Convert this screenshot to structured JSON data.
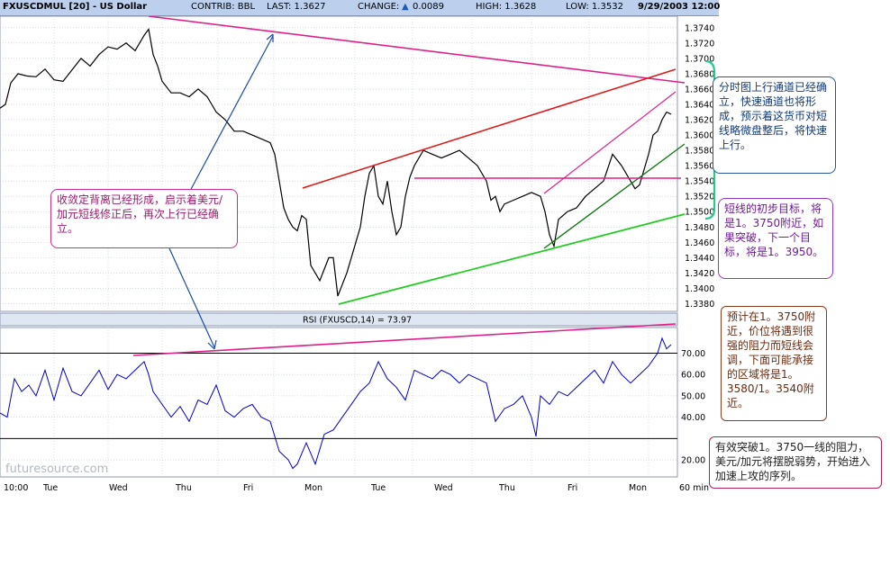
{
  "header": {
    "symbol": "FXUSCDMUL [20] - US Dollar",
    "contrib": "CONTRIB: BBL",
    "last": "LAST: 1.3627",
    "change_label": "CHANGE:",
    "change_arrow": "▲",
    "change_value": "0.0089",
    "high": "HIGH: 1.3628",
    "low": "LOW: 1.3532",
    "datetime": "9/29/2003 12:00"
  },
  "rsi_label": "RSI (FXUSCD,14) = 73.97",
  "watermark": "futuresource.com",
  "x_axis": {
    "labels": [
      "10:00",
      "Tue",
      "Wed",
      "Thu",
      "Fri",
      "Mon",
      "Tue",
      "Wed",
      "Thu",
      "Fri",
      "Mon",
      "60 min"
    ]
  },
  "annotations": {
    "divergence": "收敛定背离已经形成，启示着美元/加元短线修正后，再次上行已经确立。",
    "channel": "分时图上行通道已经确立，快速通道也将形成，预示着这货币对短线略微盘整后，将快速上行。",
    "target": "短线的初步目标，将是1。3750附近，如果突破，下一个目标，将是1。3950。",
    "resistance": "预计在1。3750附近，价位将遇到很强的阻力而短线会调，下面可能承接的区域将是1。3580/1。3540附近。",
    "breakout": "有效突破1。3750一线的阻力，美元/加元将摆脱弱势，开始进入加速上攻的序列。"
  },
  "colors": {
    "price_line": "#000000",
    "rsi_line": "#0000cc",
    "magenta_line": "#e0208a",
    "red_line": "#dd1a1a",
    "green_line": "#22cc22",
    "dark_green_line": "#117711",
    "blue_arrow": "#1a4aa6",
    "cyan_bracket": "#22cc88",
    "grid": "#c0c8d4",
    "header_bg": "#bcd0ee"
  },
  "chart_data": [
    {
      "type": "line",
      "title": "FXUSCDMUL [20] - US Dollar",
      "interval": "60 min",
      "y_ticks": [
        1.338,
        1.34,
        1.342,
        1.344,
        1.346,
        1.348,
        1.35,
        1.352,
        1.354,
        1.356,
        1.358,
        1.36,
        1.362,
        1.364,
        1.366,
        1.368,
        1.37,
        1.372,
        1.374
      ],
      "y_tick_labels": [
        "1.3380",
        "1.3400",
        "1.3420",
        "1.3440",
        "1.3460",
        "1.3480",
        "1.3500",
        "1.3520",
        "1.3540",
        "1.3560",
        "1.3580",
        "1.3600",
        "1.3620",
        "1.3640",
        "1.3660",
        "1.3680",
        "1.3700",
        "1.3720",
        "1.3740"
      ],
      "ylim": [
        1.337,
        1.3755
      ],
      "x": [
        0,
        6,
        12,
        20,
        30,
        40,
        50,
        60,
        70,
        80,
        90,
        100,
        110,
        120,
        130,
        140,
        150,
        160,
        165,
        170,
        175,
        180,
        190,
        200,
        210,
        220,
        230,
        240,
        250,
        260,
        270,
        280,
        290,
        300,
        305,
        310,
        315,
        320,
        325,
        330,
        335,
        340,
        345,
        350,
        355,
        360,
        365,
        370,
        375,
        380,
        385,
        390,
        395,
        400,
        405,
        410,
        415,
        420,
        425,
        430,
        435,
        440,
        445,
        450,
        455,
        460,
        465,
        470,
        480,
        490,
        500,
        510,
        520,
        530,
        540,
        545,
        550,
        555,
        560,
        570,
        580,
        590,
        600,
        605,
        610,
        615,
        620,
        630,
        640,
        650,
        660,
        670,
        680,
        690,
        700,
        705,
        710,
        715,
        720,
        725,
        730,
        735,
        740,
        745
      ],
      "values": [
        1.3635,
        1.364,
        1.3668,
        1.368,
        1.3677,
        1.3676,
        1.3686,
        1.3672,
        1.367,
        1.3685,
        1.37,
        1.369,
        1.3705,
        1.3715,
        1.3712,
        1.372,
        1.371,
        1.373,
        1.3738,
        1.3705,
        1.369,
        1.367,
        1.3655,
        1.3655,
        1.365,
        1.366,
        1.365,
        1.363,
        1.362,
        1.3605,
        1.3605,
        1.36,
        1.3595,
        1.359,
        1.3575,
        1.354,
        1.3505,
        1.349,
        1.348,
        1.3475,
        1.3495,
        1.349,
        1.343,
        1.342,
        1.341,
        1.3425,
        1.344,
        1.344,
        1.339,
        1.3405,
        1.342,
        1.344,
        1.346,
        1.348,
        1.352,
        1.355,
        1.356,
        1.352,
        1.351,
        1.354,
        1.35,
        1.347,
        1.348,
        1.352,
        1.3545,
        1.356,
        1.357,
        1.358,
        1.3575,
        1.357,
        1.3575,
        1.358,
        1.357,
        1.356,
        1.354,
        1.3515,
        1.352,
        1.35,
        1.351,
        1.3515,
        1.352,
        1.3525,
        1.352,
        1.35,
        1.347,
        1.3455,
        1.349,
        1.35,
        1.3505,
        1.352,
        1.353,
        1.354,
        1.3575,
        1.356,
        1.354,
        1.353,
        1.3535,
        1.3555,
        1.3575,
        1.36,
        1.3605,
        1.362,
        1.363,
        1.3627
      ]
    },
    {
      "type": "line",
      "title": "RSI (FXUSCD,14) = 73.97",
      "y_ticks": [
        20,
        30,
        40,
        50,
        60,
        70
      ],
      "y_tick_labels": [
        "20.00",
        "",
        "40.00",
        "50.00",
        "60.00",
        "70.00"
      ],
      "reference_lines": [
        70,
        30
      ],
      "ylim": [
        12,
        82
      ],
      "x": [
        0,
        8,
        16,
        24,
        32,
        40,
        50,
        60,
        70,
        80,
        90,
        100,
        110,
        120,
        130,
        140,
        150,
        160,
        165,
        170,
        180,
        190,
        200,
        210,
        220,
        230,
        240,
        250,
        260,
        270,
        280,
        290,
        300,
        310,
        320,
        325,
        330,
        340,
        350,
        360,
        370,
        380,
        390,
        400,
        410,
        420,
        430,
        440,
        450,
        460,
        470,
        480,
        490,
        500,
        510,
        520,
        530,
        540,
        550,
        560,
        570,
        580,
        590,
        595,
        600,
        610,
        620,
        630,
        640,
        650,
        660,
        670,
        680,
        690,
        700,
        710,
        720,
        730,
        735,
        740,
        745
      ],
      "values": [
        42,
        40,
        58,
        52,
        55,
        50,
        62,
        48,
        63,
        52,
        50,
        56,
        62,
        53,
        60,
        58,
        62,
        66,
        60,
        52,
        46,
        40,
        45,
        38,
        48,
        46,
        55,
        43,
        40,
        44,
        46,
        40,
        38,
        24,
        20,
        16,
        18,
        28,
        18,
        32,
        34,
        40,
        46,
        52,
        56,
        66,
        58,
        54,
        48,
        62,
        60,
        58,
        62,
        60,
        56,
        60,
        58,
        56,
        38,
        44,
        46,
        50,
        40,
        31,
        50,
        46,
        52,
        50,
        54,
        58,
        62,
        56,
        66,
        60,
        56,
        60,
        64,
        70,
        77,
        72,
        74
      ]
    }
  ]
}
